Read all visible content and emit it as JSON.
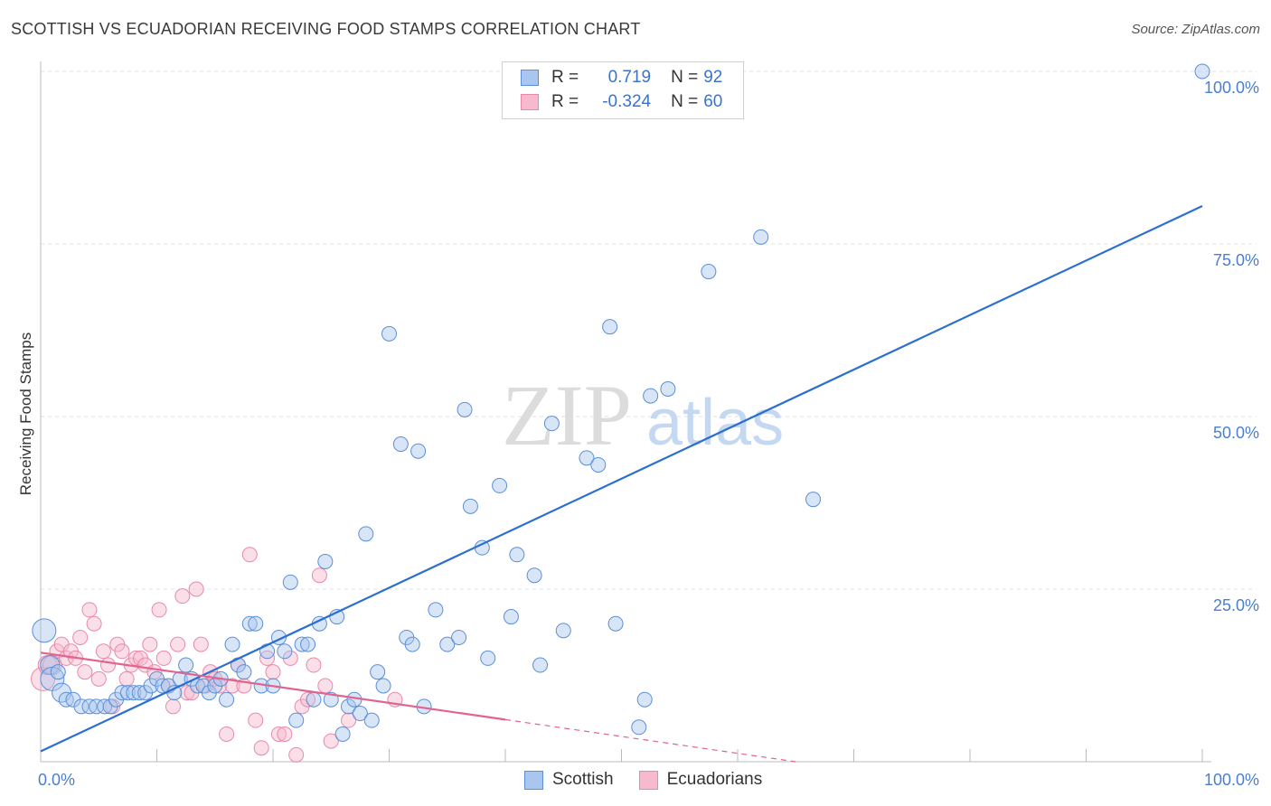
{
  "title": "SCOTTISH VS ECUADORIAN RECEIVING FOOD STAMPS CORRELATION CHART",
  "source": "Source: ZipAtlas.com",
  "watermark": {
    "zip": "ZIP",
    "atlas": "atlas"
  },
  "legend": {
    "r_label": "R =",
    "n_label": "N =",
    "rows": [
      {
        "name": "Scottish",
        "r": "0.719",
        "n": "92"
      },
      {
        "name": "Ecuadorians",
        "r": "-0.324",
        "n": "60"
      }
    ]
  },
  "colors": {
    "scottish_fill": "#a9c6ee",
    "scottish_stroke": "#5b8fd8",
    "scottish_line": "#2b6fd0",
    "ecuador_fill": "#f6b9cd",
    "ecuador_stroke": "#e889a8",
    "ecuador_line": "#e0648f",
    "tick": "#4a7fd0"
  },
  "chart_data": {
    "type": "scatter",
    "title": "SCOTTISH VS ECUADORIAN RECEIVING FOOD STAMPS CORRELATION CHART",
    "xlabel": "",
    "ylabel": "Receiving Food Stamps",
    "xlim": [
      0,
      100
    ],
    "ylim": [
      0,
      100
    ],
    "x_tick_labels": [
      "0.0%",
      "100.0%"
    ],
    "y_tick_labels": [
      {
        "value": 25,
        "label": "25.0%"
      },
      {
        "value": 50,
        "label": "50.0%"
      },
      {
        "value": 75,
        "label": "75.0%"
      },
      {
        "value": 100,
        "label": "100.0%"
      }
    ],
    "series": [
      {
        "name": "Scottish",
        "r": 0.719,
        "n": 92,
        "trend": {
          "x": [
            0,
            100
          ],
          "y": [
            1.5,
            80.5
          ]
        },
        "points": [
          [
            0.3,
            19,
            3
          ],
          [
            0.8,
            14,
            2
          ],
          [
            1,
            12,
            3
          ],
          [
            1.5,
            13,
            1
          ],
          [
            1.8,
            10,
            2
          ],
          [
            2.2,
            9,
            1
          ],
          [
            2.8,
            9,
            1
          ],
          [
            3.5,
            8,
            1
          ],
          [
            4.2,
            8,
            1
          ],
          [
            4.8,
            8,
            1
          ],
          [
            5.5,
            8,
            1
          ],
          [
            6,
            8,
            1
          ],
          [
            6.5,
            9,
            1
          ],
          [
            7,
            10,
            1
          ],
          [
            7.5,
            10,
            1
          ],
          [
            8,
            10,
            1
          ],
          [
            8.5,
            10,
            1
          ],
          [
            9,
            10,
            1
          ],
          [
            9.5,
            11,
            1
          ],
          [
            10,
            12,
            1
          ],
          [
            10.5,
            11,
            1
          ],
          [
            11,
            11,
            1
          ],
          [
            11.5,
            10,
            1
          ],
          [
            12,
            12,
            1
          ],
          [
            12.5,
            14,
            1
          ],
          [
            13,
            12,
            1
          ],
          [
            13.5,
            11,
            1
          ],
          [
            14,
            11,
            1
          ],
          [
            14.5,
            10,
            1
          ],
          [
            15,
            11,
            1
          ],
          [
            15.5,
            12,
            1
          ],
          [
            16,
            9,
            1
          ],
          [
            16.5,
            17,
            1
          ],
          [
            17,
            14,
            1
          ],
          [
            17.5,
            13,
            1
          ],
          [
            18,
            20,
            1
          ],
          [
            18.5,
            20,
            1
          ],
          [
            19,
            11,
            1
          ],
          [
            19.5,
            16,
            1
          ],
          [
            20,
            11,
            1
          ],
          [
            20.5,
            18,
            1
          ],
          [
            21,
            16,
            1
          ],
          [
            21.5,
            26,
            1
          ],
          [
            22,
            6,
            1
          ],
          [
            22.5,
            17,
            1
          ],
          [
            23,
            17,
            1
          ],
          [
            23.5,
            9,
            1
          ],
          [
            24,
            20,
            1
          ],
          [
            24.5,
            29,
            1
          ],
          [
            25,
            9,
            1
          ],
          [
            25.5,
            21,
            1
          ],
          [
            26,
            4,
            1
          ],
          [
            26.5,
            8,
            1
          ],
          [
            27,
            9,
            1
          ],
          [
            27.5,
            7,
            1
          ],
          [
            28,
            33,
            1
          ],
          [
            28.5,
            6,
            1
          ],
          [
            29,
            13,
            1
          ],
          [
            29.5,
            11,
            1
          ],
          [
            30,
            62,
            1
          ],
          [
            31,
            46,
            1
          ],
          [
            31.5,
            18,
            1
          ],
          [
            32,
            17,
            1
          ],
          [
            32.5,
            45,
            1
          ],
          [
            33,
            8,
            1
          ],
          [
            34,
            22,
            1
          ],
          [
            35,
            17,
            1
          ],
          [
            36,
            18,
            1
          ],
          [
            36.5,
            51,
            1
          ],
          [
            37,
            37,
            1
          ],
          [
            38,
            31,
            1
          ],
          [
            38.5,
            15,
            1
          ],
          [
            39.5,
            40,
            1
          ],
          [
            40.5,
            21,
            1
          ],
          [
            41,
            30,
            1
          ],
          [
            42.5,
            27,
            1
          ],
          [
            43,
            14,
            1
          ],
          [
            44,
            49,
            1
          ],
          [
            45,
            19,
            1
          ],
          [
            47,
            44,
            1
          ],
          [
            48,
            43,
            1
          ],
          [
            49,
            63,
            1
          ],
          [
            49.5,
            20,
            1
          ],
          [
            51.5,
            5,
            1
          ],
          [
            52,
            9,
            1
          ],
          [
            52.5,
            53,
            1
          ],
          [
            54,
            54,
            1
          ],
          [
            57.5,
            71,
            1
          ],
          [
            62,
            76,
            1
          ],
          [
            66.5,
            38,
            1
          ],
          [
            100,
            100,
            1
          ]
        ]
      },
      {
        "name": "Ecuadorians",
        "r": -0.324,
        "n": 60,
        "trend": {
          "x": [
            0,
            40
          ],
          "y": [
            15.8,
            6.1
          ]
        },
        "trend_dashed": {
          "x": [
            40,
            65
          ],
          "y": [
            6.1,
            0
          ]
        },
        "points": [
          [
            0.2,
            12,
            3
          ],
          [
            0.6,
            14,
            2
          ],
          [
            1,
            14,
            2
          ],
          [
            1.4,
            16,
            1
          ],
          [
            1.8,
            17,
            1
          ],
          [
            2.2,
            15,
            1
          ],
          [
            2.6,
            16,
            1
          ],
          [
            3,
            15,
            1
          ],
          [
            3.4,
            18,
            1
          ],
          [
            3.8,
            13,
            1
          ],
          [
            4.2,
            22,
            1
          ],
          [
            4.6,
            20,
            1
          ],
          [
            5,
            12,
            1
          ],
          [
            5.4,
            16,
            1
          ],
          [
            5.8,
            14,
            1
          ],
          [
            6.2,
            8,
            1
          ],
          [
            6.6,
            17,
            1
          ],
          [
            7,
            16,
            1
          ],
          [
            7.4,
            12,
            1
          ],
          [
            7.8,
            14,
            1
          ],
          [
            8.2,
            15,
            1
          ],
          [
            8.6,
            15,
            1
          ],
          [
            9,
            14,
            1
          ],
          [
            9.4,
            17,
            1
          ],
          [
            9.8,
            13,
            1
          ],
          [
            10.2,
            22,
            1
          ],
          [
            10.6,
            15,
            1
          ],
          [
            11,
            11,
            1
          ],
          [
            11.4,
            8,
            1
          ],
          [
            11.8,
            17,
            1
          ],
          [
            12.2,
            24,
            1
          ],
          [
            12.6,
            10,
            1
          ],
          [
            13,
            10,
            1
          ],
          [
            13.4,
            25,
            1
          ],
          [
            13.8,
            17,
            1
          ],
          [
            14.2,
            11,
            1
          ],
          [
            14.6,
            13,
            1
          ],
          [
            15,
            12,
            1
          ],
          [
            15.4,
            11,
            1
          ],
          [
            16,
            4,
            1
          ],
          [
            16.5,
            11,
            1
          ],
          [
            17,
            14,
            1
          ],
          [
            17.5,
            11,
            1
          ],
          [
            18,
            30,
            1
          ],
          [
            18.5,
            6,
            1
          ],
          [
            19,
            2,
            1
          ],
          [
            19.5,
            15,
            1
          ],
          [
            20,
            13,
            1
          ],
          [
            20.5,
            4,
            1
          ],
          [
            21,
            4,
            1
          ],
          [
            21.5,
            15,
            1
          ],
          [
            22,
            1,
            1
          ],
          [
            22.5,
            8,
            1
          ],
          [
            23,
            9,
            1
          ],
          [
            23.5,
            14,
            1
          ],
          [
            24,
            27,
            1
          ],
          [
            24.5,
            11,
            1
          ],
          [
            25,
            3,
            1
          ],
          [
            26.5,
            6,
            1
          ],
          [
            30.5,
            9,
            1
          ]
        ]
      }
    ]
  }
}
